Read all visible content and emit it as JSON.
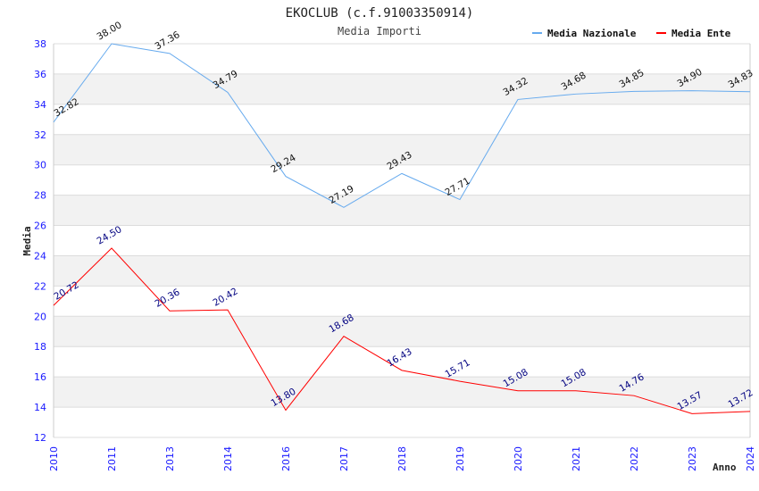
{
  "chart_data": {
    "type": "line",
    "title": "EKOCLUB (c.f.91003350914)",
    "subtitle": "Media Importi",
    "xlabel": "Anno",
    "ylabel": "Media",
    "ylim": [
      12,
      38
    ],
    "yticks": [
      12,
      14,
      16,
      18,
      20,
      22,
      24,
      26,
      28,
      30,
      32,
      34,
      36,
      38
    ],
    "categories": [
      "2010",
      "2011",
      "2013",
      "2014",
      "2016",
      "2017",
      "2018",
      "2019",
      "2020",
      "2021",
      "2022",
      "2023",
      "2024"
    ],
    "legend_position": "top-right",
    "series": [
      {
        "name": "Media Nazionale",
        "color": "#66aaee",
        "label_color": "#111111",
        "values": [
          32.82,
          38.0,
          37.36,
          34.79,
          29.24,
          27.19,
          29.43,
          27.71,
          34.32,
          34.68,
          34.85,
          34.9,
          34.83
        ]
      },
      {
        "name": "Media Ente",
        "color": "#ff0000",
        "label_color": "#000080",
        "values": [
          20.72,
          24.5,
          20.36,
          20.42,
          13.8,
          18.68,
          16.43,
          15.71,
          15.08,
          15.08,
          14.76,
          13.57,
          13.72
        ]
      }
    ]
  }
}
